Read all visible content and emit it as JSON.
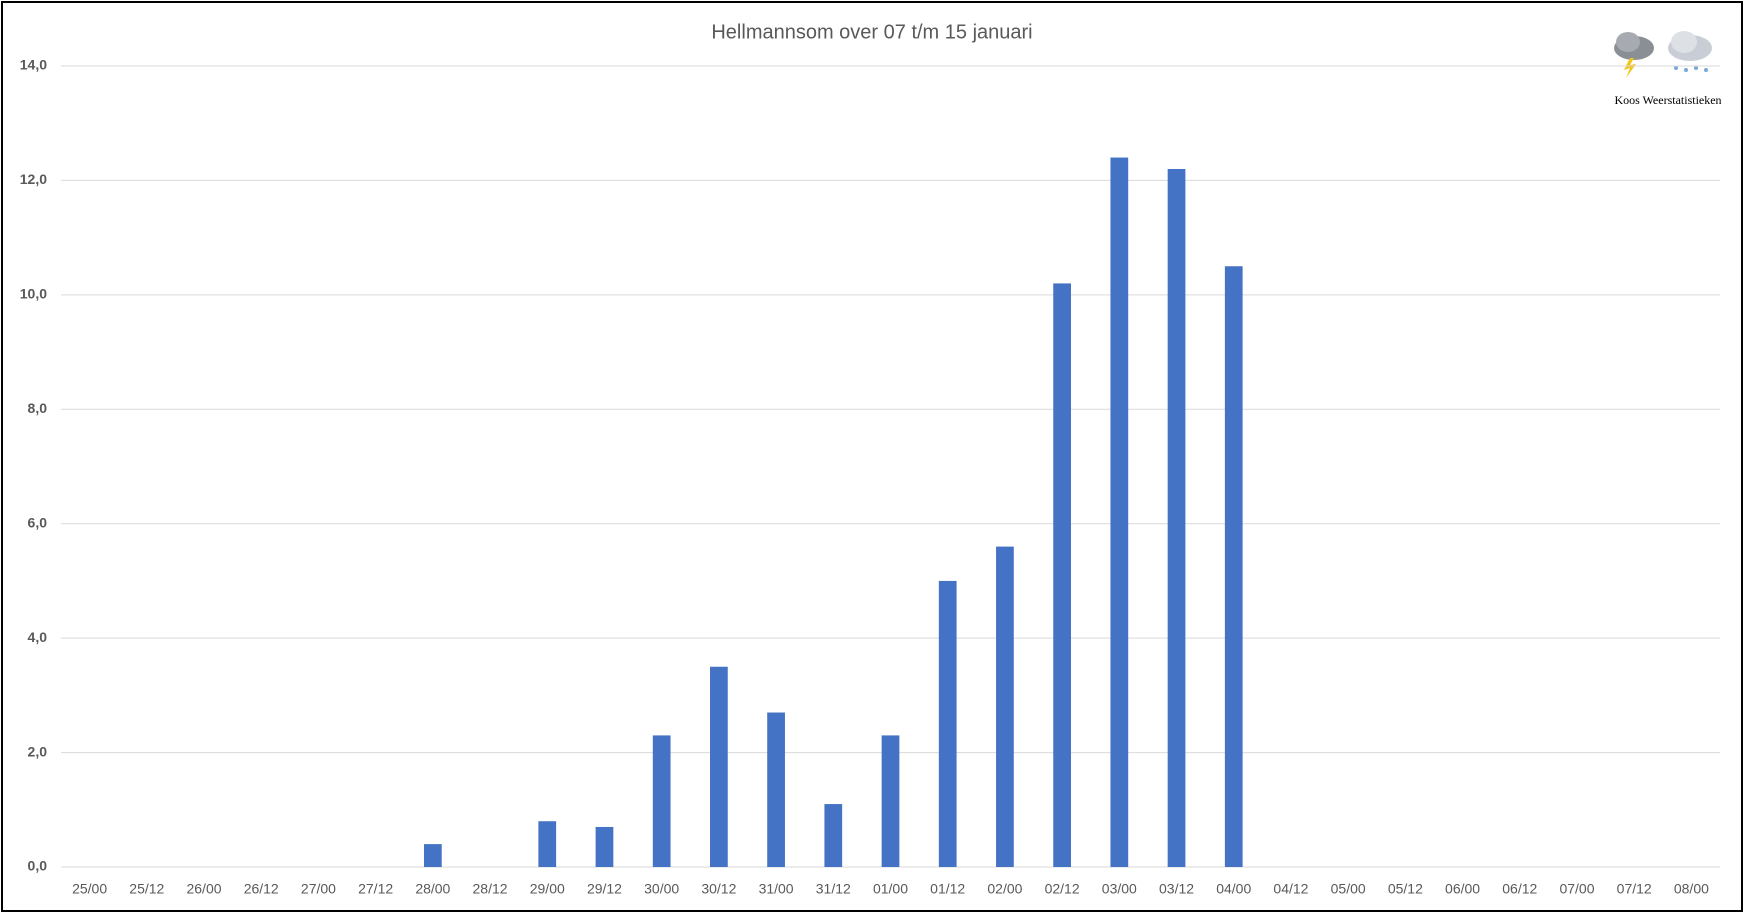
{
  "chart_data": {
    "type": "bar",
    "title": "Hellmannsom over 07 t/m 15 januari",
    "watermark": "Koos Weerstatistieken",
    "categories": [
      "25/00",
      "25/12",
      "26/00",
      "26/12",
      "27/00",
      "27/12",
      "28/00",
      "28/12",
      "29/00",
      "29/12",
      "30/00",
      "30/12",
      "31/00",
      "31/12",
      "01/00",
      "01/12",
      "02/00",
      "02/12",
      "03/00",
      "03/12",
      "04/00",
      "04/12",
      "05/00",
      "05/12",
      "06/00",
      "06/12",
      "07/00",
      "07/12",
      "08/00"
    ],
    "values": [
      0,
      0,
      0,
      0,
      0,
      0,
      0.4,
      0,
      0.8,
      0.7,
      2.3,
      3.5,
      2.7,
      1.1,
      2.3,
      5.0,
      5.6,
      10.2,
      12.4,
      12.2,
      10.5,
      null,
      null,
      null,
      null,
      null,
      null,
      null,
      null
    ],
    "color": "#4472c4",
    "ylim": [
      0,
      14
    ],
    "yticks": [
      {
        "value": 0,
        "label": "0,0"
      },
      {
        "value": 2,
        "label": "2,0"
      },
      {
        "value": 4,
        "label": "4,0"
      },
      {
        "value": 6,
        "label": "6,0"
      },
      {
        "value": 8,
        "label": "8,0"
      },
      {
        "value": 10,
        "label": "10,0"
      },
      {
        "value": 12,
        "label": "12,0"
      },
      {
        "value": 14,
        "label": "14,0"
      }
    ],
    "grid": true
  }
}
